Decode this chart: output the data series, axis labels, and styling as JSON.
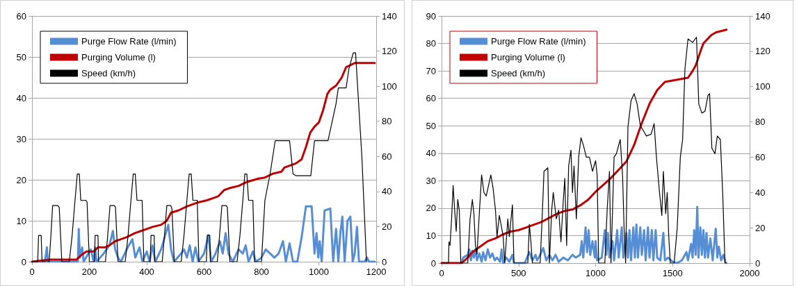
{
  "chart_data": [
    {
      "type": "line",
      "xlim": [
        0,
        1200
      ],
      "xticks": [
        0,
        200,
        400,
        600,
        800,
        1000,
        1200
      ],
      "ylim": [
        0,
        60
      ],
      "yticks": [
        0,
        10,
        20,
        30,
        40,
        50,
        60
      ],
      "y2lim": [
        0,
        140
      ],
      "y2ticks": [
        0,
        20,
        40,
        60,
        80,
        100,
        120,
        140
      ],
      "grid": "y",
      "legend": "top left",
      "series": [
        {
          "name": "Purge Flow Rate (l/min)",
          "color": "#558ed5",
          "x": [
            0,
            45,
            52,
            56,
            160,
            163,
            167,
            175,
            180,
            205,
            215,
            220,
            225,
            250,
            270,
            282,
            290,
            300,
            310,
            330,
            350,
            360,
            375,
            385,
            400,
            410,
            420,
            430,
            450,
            475,
            485,
            495,
            520,
            530,
            540,
            550,
            560,
            570,
            580,
            600,
            615,
            625,
            640,
            655,
            665,
            675,
            685,
            700,
            720,
            735,
            745,
            755,
            770,
            780,
            800,
            815,
            830,
            845,
            860,
            875,
            885,
            898,
            910,
            925,
            940,
            955,
            975,
            985,
            992,
            998,
            1003,
            1010,
            1020,
            1040,
            1050,
            1060,
            1068,
            1075,
            1082,
            1090,
            1100,
            1110,
            1118,
            1125,
            1133,
            1140,
            1160,
            1168,
            1175,
            1195
          ],
          "values": [
            0,
            0,
            3.5,
            0,
            0,
            8,
            1,
            3.5,
            0,
            3,
            0,
            3.5,
            0,
            2,
            4,
            7.5,
            3,
            1,
            0,
            3,
            5.5,
            1,
            3.5,
            0,
            2.5,
            0,
            4,
            0,
            3,
            9,
            3,
            0,
            2,
            3,
            1,
            4,
            0,
            3.5,
            0,
            2,
            6.5,
            0,
            2,
            5,
            2,
            7,
            2,
            0,
            3,
            2,
            4,
            0,
            2.5,
            0,
            1,
            3,
            2,
            1,
            2,
            5,
            0,
            4.5,
            0,
            0,
            6,
            13.5,
            13.5,
            2,
            7,
            1,
            5,
            0,
            12.5,
            13,
            0,
            8,
            0,
            7,
            11,
            0,
            10,
            11,
            0,
            2,
            8.5,
            0,
            0,
            1,
            0,
            0
          ]
        },
        {
          "name": "Purging Volume (l)",
          "color": "#c00000",
          "x": [
            0,
            60,
            155,
            170,
            190,
            215,
            230,
            255,
            270,
            290,
            310,
            330,
            360,
            380,
            400,
            420,
            450,
            470,
            485,
            510,
            540,
            580,
            610,
            630,
            650,
            670,
            690,
            720,
            750,
            790,
            810,
            840,
            870,
            880,
            900,
            920,
            940,
            955,
            970,
            985,
            1000,
            1015,
            1030,
            1040,
            1060,
            1080,
            1095,
            1110,
            1125,
            1195
          ],
          "values": [
            0,
            0.5,
            0.5,
            1.5,
            2.5,
            2.5,
            3.5,
            3.5,
            4,
            5,
            5.5,
            6,
            7,
            7.5,
            8,
            8.5,
            9,
            10,
            12,
            12.5,
            13.5,
            14.5,
            15,
            15.5,
            16,
            17.5,
            18,
            18.5,
            19.5,
            20.3,
            20.5,
            21.5,
            22,
            23,
            23.5,
            24,
            25,
            28,
            31.5,
            33,
            34,
            37,
            41,
            42,
            43,
            45,
            47.5,
            48,
            48.5,
            48.5
          ]
        },
        {
          "name": "Speed (km/h)",
          "color": "#000000",
          "axis": "y2",
          "x": [
            0,
            20,
            23,
            32,
            35,
            60,
            66,
            72,
            90,
            95,
            104,
            130,
            140,
            150,
            158,
            165,
            170,
            188,
            192,
            200,
            218,
            220,
            230,
            232,
            256,
            264,
            272,
            287,
            291,
            300,
            325,
            335,
            345,
            353,
            360,
            366,
            384,
            390,
            412,
            415,
            426,
            428,
            454,
            462,
            470,
            484,
            488,
            496,
            520,
            530,
            540,
            548,
            555,
            561,
            576,
            582,
            608,
            611,
            620,
            622,
            646,
            654,
            662,
            677,
            681,
            690,
            715,
            725,
            735,
            742,
            749,
            755,
            770,
            776,
            800,
            812,
            830,
            848,
            898,
            910,
            920,
            972,
            985,
            1032,
            1060,
            1068,
            1095,
            1105,
            1120,
            1128,
            1150,
            1166
          ],
          "values": [
            0,
            0,
            15,
            15,
            0,
            0,
            15,
            32,
            32,
            31,
            0,
            0,
            15,
            35,
            50,
            50,
            35,
            35,
            34,
            0,
            0,
            15,
            15,
            0,
            0,
            15,
            32,
            32,
            31,
            0,
            0,
            15,
            35,
            50,
            50,
            35,
            35,
            0,
            0,
            15,
            15,
            0,
            0,
            15,
            32,
            32,
            30,
            0,
            0,
            15,
            35,
            50,
            50,
            35,
            35,
            0,
            0,
            15,
            15,
            0,
            0,
            15,
            32,
            32,
            31,
            0,
            0,
            15,
            35,
            50,
            50,
            35,
            35,
            0,
            0,
            35,
            50,
            69,
            69,
            50,
            49,
            49,
            69,
            69,
            90,
            99,
            99,
            110,
            119,
            119,
            60,
            0
          ]
        }
      ]
    },
    {
      "type": "line",
      "xlim": [
        0,
        2000
      ],
      "xticks": [
        0,
        500,
        1000,
        1500,
        2000
      ],
      "ylim": [
        0,
        90
      ],
      "yticks": [
        0,
        10,
        20,
        30,
        40,
        50,
        60,
        70,
        80,
        90
      ],
      "y2lim": [
        0,
        140
      ],
      "y2ticks": [
        0,
        20,
        40,
        60,
        80,
        100,
        120,
        140
      ],
      "grid": "y",
      "legend": "top left",
      "series": [
        {
          "name": "Purge Flow Rate (l/min)",
          "color": "#558ed5",
          "x": [
            0,
            130,
            140,
            170,
            180,
            190,
            200,
            210,
            220,
            230,
            245,
            260,
            270,
            285,
            300,
            315,
            330,
            345,
            360,
            380,
            390,
            400,
            420,
            440,
            460,
            470,
            540,
            555,
            570,
            590,
            610,
            620,
            640,
            660,
            680,
            700,
            720,
            740,
            760,
            790,
            820,
            850,
            870,
            900,
            910,
            920,
            935,
            945,
            955,
            965,
            980,
            995,
            1000,
            1010,
            1040,
            1060,
            1070,
            1080,
            1090,
            1110,
            1120,
            1140,
            1150,
            1170,
            1180,
            1200,
            1210,
            1220,
            1230,
            1245,
            1255,
            1265,
            1275,
            1290,
            1300,
            1315,
            1325,
            1340,
            1350,
            1365,
            1375,
            1390,
            1400,
            1420,
            1440,
            1450,
            1470,
            1500,
            1530,
            1560,
            1590,
            1600,
            1620,
            1630,
            1640,
            1650,
            1660,
            1668,
            1680,
            1690,
            1700,
            1710,
            1720,
            1730,
            1745,
            1760,
            1780,
            1790,
            1800,
            1815,
            1830,
            1845,
            1850
          ],
          "values": [
            0,
            0,
            2,
            3,
            5,
            1,
            4.5,
            2,
            5,
            1,
            3.5,
            0.5,
            4,
            1,
            5,
            2,
            3.5,
            1,
            2,
            0.5,
            5,
            0,
            2,
            0.5,
            3,
            0,
            0,
            2,
            4,
            1,
            3,
            1,
            3,
            5.5,
            1,
            3,
            1,
            3,
            0.5,
            2,
            1,
            3,
            2,
            3,
            8,
            2,
            13,
            4,
            12,
            3,
            8,
            2,
            8,
            1,
            2,
            12,
            3,
            11,
            2,
            8,
            1,
            12,
            2,
            13,
            2,
            11,
            2,
            12,
            1,
            13,
            2,
            14,
            2,
            13,
            3,
            12,
            1,
            13,
            2,
            12,
            1,
            12,
            2,
            1,
            11,
            1,
            2,
            0.5,
            0,
            1,
            4,
            1,
            7,
            2,
            12,
            3,
            20.5,
            2,
            13,
            3,
            12,
            2,
            11,
            2,
            9,
            1,
            12.5,
            2,
            6,
            1,
            3,
            0,
            0
          ]
        },
        {
          "name": "Purging Volume (l)",
          "color": "#c00000",
          "x": [
            0,
            130,
            170,
            200,
            250,
            300,
            350,
            400,
            450,
            500,
            550,
            600,
            650,
            700,
            750,
            800,
            850,
            900,
            950,
            1000,
            1050,
            1100,
            1150,
            1200,
            1250,
            1300,
            1350,
            1400,
            1450,
            1500,
            1550,
            1600,
            1630,
            1650,
            1680,
            1700,
            1750,
            1780,
            1850
          ],
          "values": [
            0,
            0,
            2,
            4,
            6,
            8,
            9,
            10.5,
            11.5,
            12,
            13,
            14,
            15,
            16.5,
            18,
            19,
            19.5,
            21,
            23,
            26,
            28.5,
            31,
            34,
            37,
            43,
            51,
            58,
            63,
            66,
            66.5,
            67,
            67.5,
            70,
            72,
            77,
            80,
            83,
            84,
            85
          ]
        },
        {
          "name": "Speed (km/h)",
          "color": "#000000",
          "axis": "y2",
          "x": [
            0,
            45,
            48,
            55,
            65,
            75,
            85,
            95,
            105,
            115,
            125,
            170,
            185,
            200,
            210,
            220,
            230,
            245,
            260,
            275,
            290,
            300,
            320,
            335,
            350,
            360,
            375,
            390,
            400,
            410,
            430,
            440,
            460,
            470,
            560,
            570,
            580,
            590,
            640,
            655,
            665,
            690,
            700,
            715,
            725,
            745,
            760,
            775,
            790,
            800,
            812,
            825,
            840,
            850,
            860,
            875,
            890,
            905,
            920,
            940,
            960,
            980,
            1000,
            1010,
            1020,
            1060,
            1075,
            1090,
            1100,
            1110,
            1120,
            1135,
            1160,
            1175,
            1185,
            1195,
            1210,
            1230,
            1250,
            1270,
            1290,
            1310,
            1330,
            1360,
            1380,
            1395,
            1415,
            1430,
            1440,
            1455,
            1465,
            1475,
            1485,
            1510,
            1530,
            1550,
            1565,
            1580,
            1600,
            1630,
            1655,
            1670,
            1690,
            1710,
            1730,
            1740,
            1755,
            1775,
            1790,
            1810,
            1825,
            1840,
            1850
          ],
          "values": [
            0,
            0,
            12,
            10,
            25,
            44,
            30,
            18,
            36,
            30,
            0,
            0,
            25,
            36,
            28,
            10,
            5,
            28,
            50,
            40,
            38,
            42,
            50,
            42,
            30,
            15,
            27,
            20,
            15,
            0,
            25,
            15,
            33,
            0,
            0,
            22,
            12,
            0,
            0,
            30,
            52,
            54,
            0,
            30,
            40,
            25,
            30,
            12,
            35,
            48,
            10,
            55,
            64,
            40,
            55,
            25,
            60,
            71,
            67,
            60,
            60,
            52,
            58,
            50,
            0,
            0,
            30,
            52,
            0,
            30,
            60,
            62,
            70,
            50,
            20,
            0,
            77,
            92,
            96,
            90,
            78,
            75,
            72,
            73,
            79,
            60,
            40,
            27,
            52,
            28,
            40,
            15,
            0,
            0,
            20,
            60,
            70,
            110,
            127,
            125,
            128,
            90,
            85,
            86,
            95,
            96,
            65,
            62,
            72,
            70,
            40,
            0,
            0
          ]
        }
      ]
    }
  ]
}
